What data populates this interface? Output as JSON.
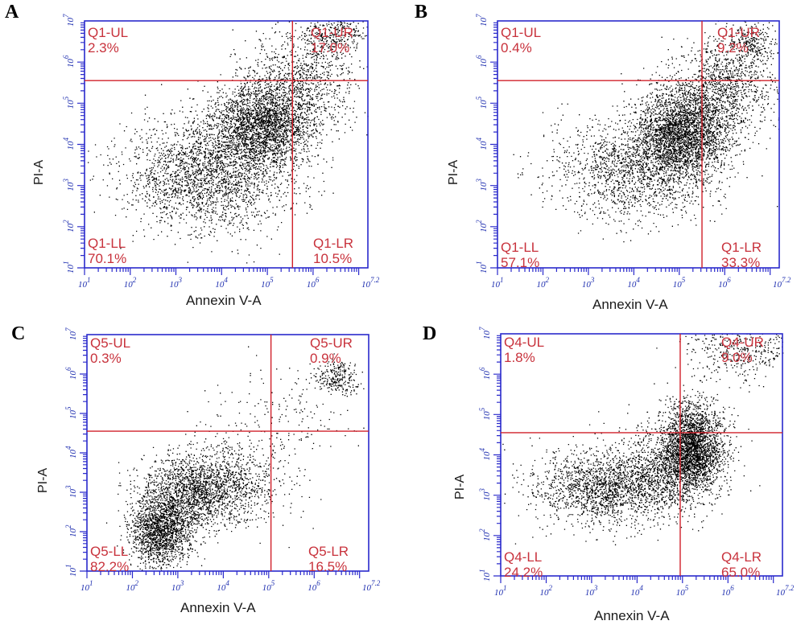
{
  "colors": {
    "axis": "#2a2acc",
    "gate": "#d0202a",
    "label": "#c8323c",
    "dots": "#000000"
  },
  "chart_data": [
    {
      "type": "scatter",
      "panel": "A",
      "xlabel": "Annexin V-A",
      "ylabel": "PI-A",
      "xlim": [
        1,
        7.2
      ],
      "ylim": [
        1,
        7
      ],
      "log_scale": true,
      "x_ticks": [
        "10^1",
        "10^2",
        "10^3",
        "10^4",
        "10^5",
        "10^6",
        "10^7.2"
      ],
      "y_ticks": [
        "10^1",
        "10^2",
        "10^3",
        "10^4",
        "10^5",
        "10^6",
        "10^7"
      ],
      "gate": {
        "x": 5.55,
        "y": 5.55
      },
      "quadrants": {
        "UL": {
          "name": "Q1-UL",
          "percent": "2.3%"
        },
        "UR": {
          "name": "Q1-UR",
          "percent": "17.0%"
        },
        "LL": {
          "name": "Q1-LL",
          "percent": "70.1%"
        },
        "LR": {
          "name": "Q1-LR",
          "percent": "10.5%"
        }
      },
      "clusters": [
        {
          "cx": 4.9,
          "cy": 4.5,
          "sx": 0.55,
          "sy": 0.55,
          "n": 2600
        },
        {
          "cx": 3.7,
          "cy": 3.3,
          "sx": 0.9,
          "sy": 0.7,
          "n": 2400
        },
        {
          "cx": 5.8,
          "cy": 5.6,
          "sx": 0.6,
          "sy": 0.6,
          "n": 900
        },
        {
          "cx": 6.5,
          "cy": 6.7,
          "sx": 0.35,
          "sy": 0.25,
          "n": 300
        }
      ]
    },
    {
      "type": "scatter",
      "panel": "B",
      "xlabel": "Annexin V-A",
      "ylabel": "PI-A",
      "xlim": [
        1,
        7.2
      ],
      "ylim": [
        1,
        7
      ],
      "log_scale": true,
      "x_ticks": [
        "10^1",
        "10^2",
        "10^3",
        "10^4",
        "10^5",
        "10^6",
        "10^7.2"
      ],
      "y_ticks": [
        "10^1",
        "10^2",
        "10^3",
        "10^4",
        "10^5",
        "10^6",
        "10^7"
      ],
      "gate": {
        "x": 5.5,
        "y": 5.55
      },
      "quadrants": {
        "UL": {
          "name": "Q1-UL",
          "percent": "0.4%"
        },
        "UR": {
          "name": "Q1-UR",
          "percent": "9.2%"
        },
        "LL": {
          "name": "Q1-LL",
          "percent": "57.1%"
        },
        "LR": {
          "name": "Q1-LR",
          "percent": "33.3%"
        }
      },
      "clusters": [
        {
          "cx": 5.1,
          "cy": 4.3,
          "sx": 0.5,
          "sy": 0.55,
          "n": 2800
        },
        {
          "cx": 4.0,
          "cy": 3.4,
          "sx": 0.9,
          "sy": 0.6,
          "n": 1700
        },
        {
          "cx": 6.0,
          "cy": 5.4,
          "sx": 0.55,
          "sy": 0.6,
          "n": 1100
        },
        {
          "cx": 6.6,
          "cy": 6.5,
          "sx": 0.3,
          "sy": 0.3,
          "n": 250
        }
      ]
    },
    {
      "type": "scatter",
      "panel": "C",
      "xlabel": "Annexin V-A",
      "ylabel": "PI-A",
      "xlim": [
        1,
        7.2
      ],
      "ylim": [
        1,
        7
      ],
      "log_scale": true,
      "x_ticks": [
        "10^1",
        "10^2",
        "10^3",
        "10^4",
        "10^5",
        "10^6",
        "10^7.2"
      ],
      "y_ticks": [
        "10^1",
        "10^2",
        "10^3",
        "10^4",
        "10^5",
        "10^6",
        "10^7"
      ],
      "gate": {
        "x": 5.05,
        "y": 4.55
      },
      "quadrants": {
        "UL": {
          "name": "Q5-UL",
          "percent": "0.3%"
        },
        "UR": {
          "name": "Q5-UR",
          "percent": "0.9%"
        },
        "LL": {
          "name": "Q5-LL",
          "percent": "82.2%"
        },
        "LR": {
          "name": "Q5-LR",
          "percent": "16.5%"
        }
      },
      "clusters": [
        {
          "cx": 2.6,
          "cy": 2.0,
          "sx": 0.35,
          "sy": 0.45,
          "n": 1700
        },
        {
          "cx": 3.3,
          "cy": 3.0,
          "sx": 0.55,
          "sy": 0.45,
          "n": 1500
        },
        {
          "cx": 4.2,
          "cy": 3.3,
          "sx": 0.6,
          "sy": 0.5,
          "n": 700
        },
        {
          "cx": 6.5,
          "cy": 5.9,
          "sx": 0.25,
          "sy": 0.2,
          "n": 250
        },
        {
          "cx": 5.2,
          "cy": 4.7,
          "sx": 0.9,
          "sy": 0.8,
          "n": 200
        }
      ]
    },
    {
      "type": "scatter",
      "panel": "D",
      "xlabel": "Annexin V-A",
      "ylabel": "PI-A",
      "xlim": [
        1,
        7.2
      ],
      "ylim": [
        1,
        7
      ],
      "log_scale": true,
      "x_ticks": [
        "10^1",
        "10^2",
        "10^3",
        "10^4",
        "10^5",
        "10^6",
        "10^7.2"
      ],
      "y_ticks": [
        "10^1",
        "10^2",
        "10^3",
        "10^4",
        "10^5",
        "10^6",
        "10^7"
      ],
      "gate": {
        "x": 4.95,
        "y": 4.55
      },
      "quadrants": {
        "UL": {
          "name": "Q4-UL",
          "percent": "1.8%"
        },
        "UR": {
          "name": "Q4-UR",
          "percent": "9.0%"
        },
        "LL": {
          "name": "Q4-LL",
          "percent": "24.2%"
        },
        "LR": {
          "name": "Q4-LR",
          "percent": "65.0%"
        }
      },
      "clusters": [
        {
          "cx": 5.2,
          "cy": 4.2,
          "sx": 0.35,
          "sy": 0.55,
          "n": 2600
        },
        {
          "cx": 3.3,
          "cy": 3.2,
          "sx": 0.8,
          "sy": 0.45,
          "n": 1800
        },
        {
          "cx": 4.6,
          "cy": 3.6,
          "sx": 0.6,
          "sy": 0.5,
          "n": 900
        },
        {
          "cx": 6.3,
          "cy": 6.6,
          "sx": 0.6,
          "sy": 0.35,
          "n": 450
        }
      ]
    }
  ]
}
